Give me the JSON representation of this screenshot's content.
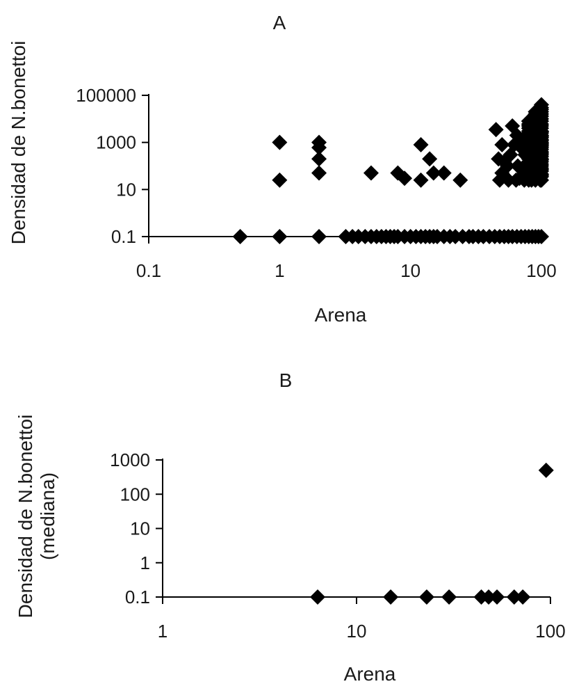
{
  "chart_data": [
    {
      "type": "scatter",
      "title": "A",
      "xlabel": "Arena",
      "ylabel": "Densidad de N.bonettoi",
      "xscale": "log",
      "yscale": "log",
      "xlim": [
        0.1,
        100
      ],
      "ylim": [
        0.1,
        100000
      ],
      "xticks": [
        "0.1",
        "1",
        "10",
        "100"
      ],
      "yticks": [
        "0.1",
        "10",
        "1000",
        "100000"
      ],
      "grid": false,
      "legend": "none",
      "marker": "diamond",
      "color": "#000000",
      "x": [
        0.5,
        1,
        2,
        3.2,
        3.6,
        4,
        4.5,
        5,
        5.5,
        6,
        6.5,
        7,
        7.5,
        8,
        9,
        10,
        11,
        12,
        13,
        14,
        15,
        16,
        18,
        20,
        22,
        25,
        28,
        30,
        33,
        36,
        40,
        44,
        48,
        52,
        56,
        60,
        65,
        70,
        75,
        80,
        85,
        90,
        95,
        100,
        1,
        1,
        2,
        2,
        2,
        2,
        5,
        8,
        9,
        12,
        12,
        14,
        15,
        18,
        24,
        45,
        47,
        48,
        50,
        50,
        52,
        55,
        56,
        58,
        60,
        62,
        64,
        65,
        66,
        68,
        70,
        72,
        74,
        75,
        76,
        78,
        80,
        82,
        84,
        85,
        86,
        88,
        90,
        92,
        94,
        95,
        96,
        98,
        100,
        100,
        100,
        100,
        100,
        100,
        100,
        100,
        100,
        100,
        100,
        100,
        100,
        100,
        100,
        100,
        100,
        100,
        100,
        100,
        100,
        100,
        100,
        100,
        100,
        100,
        100,
        100,
        100,
        100,
        100,
        100,
        100,
        100,
        100,
        100,
        100,
        100,
        100,
        100,
        100,
        90,
        90,
        90,
        90,
        90,
        90,
        90,
        90,
        90,
        90,
        90,
        90,
        90,
        90,
        90,
        90,
        90,
        90,
        90,
        90,
        90,
        90,
        90,
        90,
        90,
        90,
        90,
        90,
        90,
        90,
        90,
        90,
        90,
        90,
        90,
        90,
        90,
        90,
        90,
        90,
        80,
        80,
        80,
        80,
        80,
        80,
        80,
        80,
        80,
        80,
        80,
        80,
        80,
        80,
        80,
        80,
        80,
        80,
        80,
        80,
        80,
        80,
        80,
        80,
        80
      ],
      "y": [
        0.1,
        0.1,
        0.1,
        0.1,
        0.1,
        0.1,
        0.1,
        0.1,
        0.1,
        0.1,
        0.1,
        0.1,
        0.1,
        0.1,
        0.1,
        0.1,
        0.1,
        0.1,
        0.1,
        0.1,
        0.1,
        0.1,
        0.1,
        0.1,
        0.1,
        0.1,
        0.1,
        0.1,
        0.1,
        0.1,
        0.1,
        0.1,
        0.1,
        0.1,
        0.1,
        0.1,
        0.1,
        0.1,
        0.1,
        0.1,
        0.1,
        0.1,
        0.1,
        0.1,
        1000,
        25,
        1000,
        600,
        200,
        50,
        50,
        50,
        30,
        800,
        25,
        200,
        50,
        50,
        25,
        3500,
        200,
        25,
        800,
        50,
        150,
        100,
        25,
        300,
        5000,
        800,
        25,
        2000,
        100,
        30,
        600,
        1000,
        25,
        300,
        60,
        50,
        2000,
        4000,
        25,
        500,
        150,
        1000,
        3000,
        200,
        50,
        8000,
        30,
        25,
        40000,
        25,
        40,
        60,
        80,
        100,
        150,
        200,
        300,
        400,
        500,
        600,
        800,
        1000,
        1300,
        1600,
        2000,
        2500,
        3000,
        4000,
        5000,
        6000,
        8000,
        10000,
        13000,
        16000,
        20000,
        25000,
        30000,
        35,
        45,
        70,
        120,
        180,
        250,
        350,
        700,
        900,
        1200,
        1800,
        2800,
        25,
        40,
        60,
        80,
        100,
        150,
        200,
        300,
        400,
        500,
        600,
        800,
        1000,
        1300,
        1600,
        2000,
        2500,
        3000,
        4000,
        5000,
        6000,
        8000,
        10000,
        13000,
        16000,
        20000,
        30,
        45,
        70,
        120,
        180,
        250,
        350,
        700,
        900,
        1200,
        1800,
        2800,
        4500,
        7000,
        25,
        40,
        60,
        100,
        150,
        200,
        300,
        500,
        800,
        1000,
        1500,
        2000,
        3000,
        4000,
        5000,
        6000,
        8000,
        30,
        70,
        120,
        250,
        450,
        700,
        1200,
        2500
      ]
    },
    {
      "type": "scatter",
      "title": "B",
      "xlabel": "Arena",
      "ylabel": "Densidad de N.bonettoi",
      "ylabel2": "(mediana)",
      "xscale": "log",
      "yscale": "log",
      "xlim": [
        1,
        100
      ],
      "ylim": [
        0.1,
        1000
      ],
      "xticks": [
        "1",
        "10",
        "100"
      ],
      "yticks": [
        "0.1",
        "1",
        "10",
        "100",
        "1000"
      ],
      "grid": false,
      "legend": "none",
      "marker": "diamond",
      "color": "#000000",
      "x": [
        6.3,
        15,
        23,
        30,
        44,
        48,
        53,
        65,
        72,
        95
      ],
      "y": [
        0.1,
        0.1,
        0.1,
        0.1,
        0.1,
        0.1,
        0.1,
        0.1,
        0.1,
        500
      ]
    }
  ]
}
